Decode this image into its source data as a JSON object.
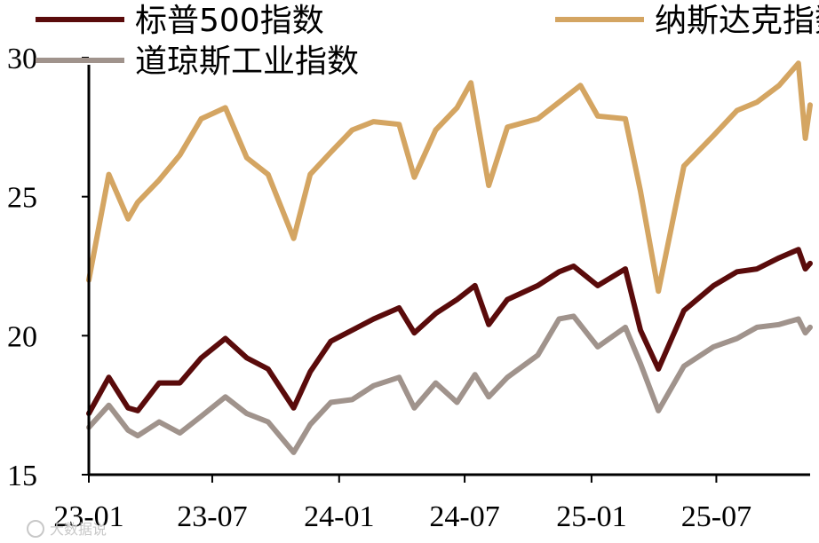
{
  "chart_data": {
    "type": "line",
    "title": "",
    "xlabel": "",
    "ylabel": "",
    "ylim": [
      15,
      30
    ],
    "yticks": [
      15,
      20,
      25,
      30
    ],
    "xticks": [
      "23-01",
      "23-07",
      "24-01",
      "24-07",
      "25-01",
      "25-07"
    ],
    "x_range": [
      "2023-01-03",
      "2025-11-14"
    ],
    "grid": false,
    "legend_position": "top",
    "series": [
      {
        "name": "标普500指数",
        "color": "#5a0b0b",
        "points": [
          [
            "2023-01-03",
            17.2
          ],
          [
            "2023-02-01",
            18.5
          ],
          [
            "2023-03-01",
            17.4
          ],
          [
            "2023-03-15",
            17.3
          ],
          [
            "2023-04-15",
            18.3
          ],
          [
            "2023-05-15",
            18.3
          ],
          [
            "2023-06-15",
            19.2
          ],
          [
            "2023-07-20",
            19.9
          ],
          [
            "2023-08-20",
            19.2
          ],
          [
            "2023-09-20",
            18.8
          ],
          [
            "2023-10-27",
            17.4
          ],
          [
            "2023-11-20",
            18.7
          ],
          [
            "2023-12-20",
            19.8
          ],
          [
            "2024-01-20",
            20.2
          ],
          [
            "2024-02-20",
            20.6
          ],
          [
            "2024-03-28",
            21.0
          ],
          [
            "2024-04-19",
            20.1
          ],
          [
            "2024-05-20",
            20.8
          ],
          [
            "2024-06-20",
            21.3
          ],
          [
            "2024-07-16",
            21.8
          ],
          [
            "2024-08-05",
            20.4
          ],
          [
            "2024-09-01",
            21.3
          ],
          [
            "2024-10-15",
            21.8
          ],
          [
            "2024-11-15",
            22.3
          ],
          [
            "2024-12-06",
            22.5
          ],
          [
            "2025-01-10",
            21.8
          ],
          [
            "2025-02-19",
            22.4
          ],
          [
            "2025-03-13",
            20.2
          ],
          [
            "2025-04-08",
            18.8
          ],
          [
            "2025-05-15",
            20.9
          ],
          [
            "2025-06-27",
            21.8
          ],
          [
            "2025-07-31",
            22.3
          ],
          [
            "2025-08-29",
            22.4
          ],
          [
            "2025-09-30",
            22.8
          ],
          [
            "2025-10-28",
            23.1
          ],
          [
            "2025-11-07",
            22.4
          ],
          [
            "2025-11-14",
            22.6
          ]
        ]
      },
      {
        "name": "纳斯达克指数",
        "color": "#d4a562",
        "points": [
          [
            "2023-01-03",
            22.0
          ],
          [
            "2023-02-01",
            25.8
          ],
          [
            "2023-03-01",
            24.2
          ],
          [
            "2023-03-15",
            24.8
          ],
          [
            "2023-04-15",
            25.6
          ],
          [
            "2023-05-15",
            26.5
          ],
          [
            "2023-06-15",
            27.8
          ],
          [
            "2023-07-20",
            28.2
          ],
          [
            "2023-08-20",
            26.4
          ],
          [
            "2023-09-20",
            25.8
          ],
          [
            "2023-10-27",
            23.5
          ],
          [
            "2023-11-20",
            25.8
          ],
          [
            "2023-12-20",
            26.6
          ],
          [
            "2024-01-20",
            27.4
          ],
          [
            "2024-02-20",
            27.7
          ],
          [
            "2024-03-28",
            27.6
          ],
          [
            "2024-04-19",
            25.7
          ],
          [
            "2024-05-20",
            27.4
          ],
          [
            "2024-06-20",
            28.2
          ],
          [
            "2024-07-10",
            29.1
          ],
          [
            "2024-08-05",
            25.4
          ],
          [
            "2024-09-01",
            27.5
          ],
          [
            "2024-10-15",
            27.8
          ],
          [
            "2024-11-15",
            28.4
          ],
          [
            "2024-12-16",
            29.0
          ],
          [
            "2025-01-10",
            27.9
          ],
          [
            "2025-02-19",
            27.8
          ],
          [
            "2025-03-13",
            25.2
          ],
          [
            "2025-04-08",
            21.6
          ],
          [
            "2025-05-15",
            26.1
          ],
          [
            "2025-06-27",
            27.2
          ],
          [
            "2025-07-31",
            28.1
          ],
          [
            "2025-08-29",
            28.4
          ],
          [
            "2025-09-30",
            29.0
          ],
          [
            "2025-10-28",
            29.8
          ],
          [
            "2025-11-07",
            27.1
          ],
          [
            "2025-11-14",
            28.3
          ]
        ]
      },
      {
        "name": "道琼斯工业指数",
        "color": "#a0938c",
        "points": [
          [
            "2023-01-03",
            16.7
          ],
          [
            "2023-02-01",
            17.5
          ],
          [
            "2023-03-01",
            16.6
          ],
          [
            "2023-03-15",
            16.4
          ],
          [
            "2023-04-15",
            16.9
          ],
          [
            "2023-05-15",
            16.5
          ],
          [
            "2023-06-15",
            17.1
          ],
          [
            "2023-07-20",
            17.8
          ],
          [
            "2023-08-20",
            17.2
          ],
          [
            "2023-09-20",
            16.9
          ],
          [
            "2023-10-27",
            15.8
          ],
          [
            "2023-11-20",
            16.8
          ],
          [
            "2023-12-20",
            17.6
          ],
          [
            "2024-01-20",
            17.7
          ],
          [
            "2024-02-20",
            18.2
          ],
          [
            "2024-03-28",
            18.5
          ],
          [
            "2024-04-19",
            17.4
          ],
          [
            "2024-05-20",
            18.3
          ],
          [
            "2024-06-20",
            17.6
          ],
          [
            "2024-07-16",
            18.6
          ],
          [
            "2024-08-05",
            17.8
          ],
          [
            "2024-09-01",
            18.5
          ],
          [
            "2024-10-15",
            19.3
          ],
          [
            "2024-11-15",
            20.6
          ],
          [
            "2024-12-06",
            20.7
          ],
          [
            "2025-01-10",
            19.6
          ],
          [
            "2025-02-19",
            20.3
          ],
          [
            "2025-03-13",
            19.0
          ],
          [
            "2025-04-08",
            17.3
          ],
          [
            "2025-05-15",
            18.9
          ],
          [
            "2025-06-27",
            19.6
          ],
          [
            "2025-07-31",
            19.9
          ],
          [
            "2025-08-29",
            20.3
          ],
          [
            "2025-09-30",
            20.4
          ],
          [
            "2025-10-28",
            20.6
          ],
          [
            "2025-11-07",
            20.1
          ],
          [
            "2025-11-14",
            20.3
          ]
        ]
      }
    ]
  },
  "watermark": "大数据说"
}
